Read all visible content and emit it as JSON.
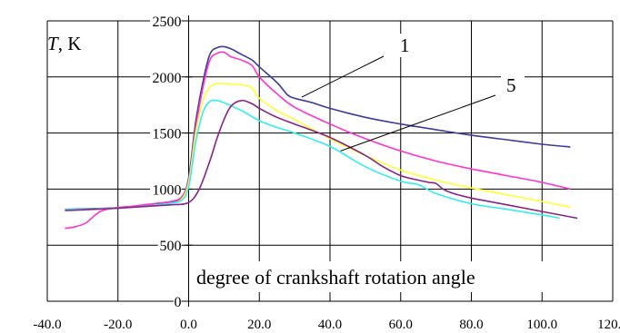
{
  "chart_data": {
    "type": "line",
    "title": "",
    "xlabel": "degree of crankshaft rotation angle",
    "ylabel_var": "T",
    "ylabel_unit": ", K",
    "xlim": [
      -40,
      120
    ],
    "ylim": [
      0,
      2500
    ],
    "grid": true,
    "x_ticks": [
      -40,
      -20,
      0,
      20,
      40,
      60,
      80,
      100,
      120
    ],
    "x_tick_labels": [
      "-40.0",
      "-20.0",
      "0.0",
      "20.0",
      "40.0",
      "60.0",
      "80.0",
      "100.0",
      "120.0"
    ],
    "y_ticks": [
      0,
      500,
      1000,
      1500,
      2000,
      2500
    ],
    "y_tick_labels": [
      "0",
      "500",
      "1000",
      "1500",
      "2000",
      "2500"
    ],
    "annotations": [
      {
        "text": "1",
        "points_to": [
          32,
          1820
        ]
      },
      {
        "text": "5",
        "points_to": [
          43,
          1340
        ]
      }
    ],
    "series": [
      {
        "color": "#3b3b9e",
        "x": [
          -35,
          -30,
          -25,
          -20,
          -15,
          -10,
          -5,
          -2,
          0,
          2,
          4,
          6,
          8,
          10,
          12,
          15,
          18,
          20,
          25,
          28,
          30,
          35,
          40,
          50,
          60,
          70,
          80,
          90,
          100,
          108
        ],
        "y": [
          820,
          825,
          828,
          835,
          845,
          860,
          880,
          920,
          1100,
          1600,
          1950,
          2200,
          2260,
          2270,
          2250,
          2200,
          2150,
          2090,
          1950,
          1840,
          1810,
          1770,
          1720,
          1640,
          1580,
          1530,
          1480,
          1440,
          1400,
          1375
        ]
      },
      {
        "color": "#ff33cc",
        "x": [
          -35,
          -32,
          -29,
          -25,
          -20,
          -15,
          -10,
          -5,
          -2,
          0,
          2,
          4,
          6,
          8,
          10,
          12,
          15,
          18,
          20,
          25,
          30,
          40,
          50,
          60,
          70,
          80,
          90,
          100,
          108
        ],
        "y": [
          650,
          665,
          700,
          800,
          835,
          850,
          870,
          890,
          930,
          1080,
          1550,
          1900,
          2150,
          2210,
          2220,
          2180,
          2150,
          2100,
          2000,
          1850,
          1730,
          1580,
          1450,
          1340,
          1250,
          1180,
          1120,
          1060,
          1000
        ]
      },
      {
        "color": "#ffff33",
        "x": [
          -35,
          -30,
          -25,
          -20,
          -15,
          -10,
          -5,
          -2,
          0,
          2,
          4,
          6,
          8,
          10,
          15,
          18,
          20,
          25,
          30,
          40,
          50,
          60,
          70,
          80,
          90,
          100,
          108
        ],
        "y": [
          820,
          822,
          825,
          830,
          840,
          855,
          875,
          910,
          1060,
          1500,
          1780,
          1910,
          1940,
          1940,
          1930,
          1900,
          1810,
          1700,
          1620,
          1450,
          1300,
          1170,
          1080,
          1010,
          950,
          890,
          840
        ]
      },
      {
        "color": "#33eeee",
        "x": [
          -35,
          -30,
          -25,
          -20,
          -15,
          -10,
          -5,
          -2,
          0,
          2,
          4,
          6,
          8,
          10,
          15,
          20,
          25,
          30,
          40,
          50,
          60,
          65,
          70,
          80,
          90,
          100,
          105
        ],
        "y": [
          820,
          822,
          825,
          830,
          840,
          855,
          875,
          900,
          1020,
          1420,
          1680,
          1780,
          1790,
          1770,
          1700,
          1610,
          1550,
          1500,
          1380,
          1200,
          1070,
          1040,
          960,
          870,
          820,
          770,
          740
        ]
      },
      {
        "color": "#882288",
        "x": [
          -35,
          -30,
          -25,
          -20,
          -15,
          -10,
          -5,
          0,
          3,
          6,
          8,
          10,
          12,
          15,
          18,
          20,
          25,
          30,
          40,
          50,
          55,
          60,
          65,
          68,
          70,
          72,
          75,
          80,
          90,
          100,
          110
        ],
        "y": [
          810,
          815,
          822,
          830,
          840,
          850,
          860,
          880,
          1000,
          1250,
          1450,
          1620,
          1740,
          1790,
          1760,
          1720,
          1640,
          1580,
          1460,
          1300,
          1200,
          1120,
          1080,
          1060,
          1050,
          1000,
          960,
          920,
          860,
          800,
          740
        ]
      }
    ]
  }
}
